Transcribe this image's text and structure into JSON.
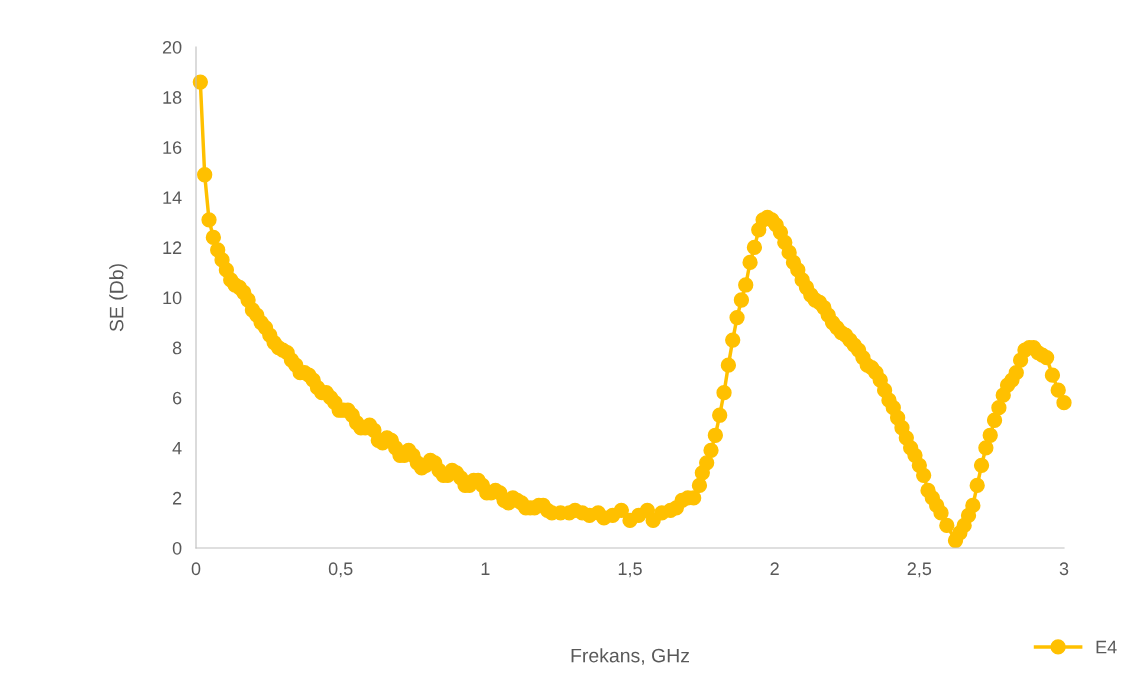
{
  "chart_data": {
    "type": "line",
    "xlabel": "Frekans, GHz",
    "ylabel": "SE (Db)",
    "xlim": [
      0,
      3
    ],
    "ylim": [
      0,
      20
    ],
    "xticks": [
      0,
      {
        "value": 0.5,
        "label": "0,5"
      },
      1,
      {
        "value": 1.5,
        "label": "1,5"
      },
      2,
      {
        "value": 2.5,
        "label": "2,5"
      },
      3
    ],
    "yticks": [
      0,
      2,
      4,
      6,
      8,
      10,
      12,
      14,
      16,
      18,
      20
    ],
    "grid": false,
    "legend": "bottom right",
    "marker": "circle",
    "line_style": "solid",
    "series": [
      {
        "name": "E4",
        "color": "#ffc000",
        "x": [
          0.015,
          0.03,
          0.045,
          0.06,
          0.075,
          0.09,
          0.105,
          0.12,
          0.135,
          0.15,
          0.165,
          0.18,
          0.195,
          0.21,
          0.225,
          0.24,
          0.255,
          0.27,
          0.285,
          0.3,
          0.315,
          0.33,
          0.345,
          0.36,
          0.375,
          0.39,
          0.405,
          0.42,
          0.435,
          0.45,
          0.465,
          0.48,
          0.495,
          0.51,
          0.525,
          0.54,
          0.555,
          0.57,
          0.585,
          0.6,
          0.615,
          0.63,
          0.645,
          0.66,
          0.675,
          0.69,
          0.705,
          0.72,
          0.735,
          0.75,
          0.765,
          0.78,
          0.795,
          0.81,
          0.825,
          0.84,
          0.855,
          0.87,
          0.885,
          0.9,
          0.915,
          0.93,
          0.945,
          0.96,
          0.975,
          0.99,
          1.005,
          1.02,
          1.035,
          1.05,
          1.065,
          1.08,
          1.095,
          1.11,
          1.125,
          1.14,
          1.155,
          1.17,
          1.185,
          1.2,
          1.215,
          1.23,
          1.26,
          1.29,
          1.31,
          1.335,
          1.36,
          1.39,
          1.41,
          1.44,
          1.47,
          1.5,
          1.53,
          1.56,
          1.58,
          1.61,
          1.64,
          1.66,
          1.68,
          1.7,
          1.72,
          1.74,
          1.75,
          1.765,
          1.78,
          1.795,
          1.81,
          1.825,
          1.84,
          1.855,
          1.87,
          1.885,
          1.9,
          1.915,
          1.93,
          1.945,
          1.96,
          1.975,
          1.99,
          2.005,
          2.02,
          2.035,
          2.05,
          2.065,
          2.08,
          2.095,
          2.11,
          2.125,
          2.14,
          2.155,
          2.17,
          2.185,
          2.2,
          2.215,
          2.23,
          2.245,
          2.26,
          2.275,
          2.29,
          2.305,
          2.32,
          2.335,
          2.35,
          2.365,
          2.38,
          2.395,
          2.41,
          2.425,
          2.44,
          2.455,
          2.47,
          2.485,
          2.5,
          2.515,
          2.53,
          2.545,
          2.56,
          2.575,
          2.595,
          2.625,
          2.64,
          2.655,
          2.67,
          2.685,
          2.7,
          2.715,
          2.73,
          2.745,
          2.76,
          2.775,
          2.79,
          2.805,
          2.82,
          2.835,
          2.85,
          2.865,
          2.88,
          2.895,
          2.91,
          2.925,
          2.94,
          2.96,
          2.98,
          3.0
        ],
        "values": [
          18.6,
          14.9,
          13.1,
          12.4,
          11.9,
          11.5,
          11.1,
          10.7,
          10.5,
          10.4,
          10.2,
          9.9,
          9.5,
          9.3,
          9.0,
          8.8,
          8.5,
          8.2,
          8.0,
          7.9,
          7.8,
          7.5,
          7.3,
          7.0,
          7.0,
          6.9,
          6.7,
          6.4,
          6.2,
          6.2,
          6.0,
          5.8,
          5.5,
          5.5,
          5.5,
          5.3,
          5.0,
          4.8,
          4.8,
          4.9,
          4.7,
          4.3,
          4.2,
          4.4,
          4.3,
          4.0,
          3.7,
          3.7,
          3.9,
          3.7,
          3.4,
          3.2,
          3.3,
          3.5,
          3.4,
          3.1,
          2.9,
          2.9,
          3.1,
          3.0,
          2.8,
          2.5,
          2.5,
          2.7,
          2.7,
          2.5,
          2.2,
          2.2,
          2.3,
          2.2,
          1.9,
          1.8,
          2.0,
          1.9,
          1.8,
          1.6,
          1.6,
          1.6,
          1.7,
          1.7,
          1.5,
          1.4,
          1.4,
          1.4,
          1.5,
          1.4,
          1.3,
          1.4,
          1.2,
          1.3,
          1.5,
          1.1,
          1.3,
          1.5,
          1.1,
          1.4,
          1.5,
          1.6,
          1.9,
          2.0,
          2.0,
          2.5,
          3.0,
          3.4,
          3.9,
          4.5,
          5.3,
          6.2,
          7.3,
          8.3,
          9.2,
          9.9,
          10.5,
          11.4,
          12.0,
          12.7,
          13.1,
          13.2,
          13.1,
          12.9,
          12.6,
          12.2,
          11.8,
          11.4,
          11.1,
          10.7,
          10.4,
          10.1,
          9.9,
          9.8,
          9.6,
          9.3,
          9.0,
          8.8,
          8.6,
          8.5,
          8.3,
          8.1,
          7.9,
          7.6,
          7.3,
          7.2,
          7.0,
          6.7,
          6.3,
          5.9,
          5.6,
          5.2,
          4.8,
          4.4,
          4.0,
          3.7,
          3.3,
          2.9,
          2.3,
          2.0,
          1.7,
          1.4,
          0.9,
          0.3,
          0.6,
          0.9,
          1.3,
          1.7,
          2.5,
          3.3,
          4.0,
          4.5,
          5.1,
          5.6,
          6.1,
          6.5,
          6.7,
          7.0,
          7.5,
          7.9,
          8.0,
          8.0,
          7.8,
          7.7,
          7.6,
          6.9,
          6.3,
          5.8
        ]
      }
    ]
  }
}
